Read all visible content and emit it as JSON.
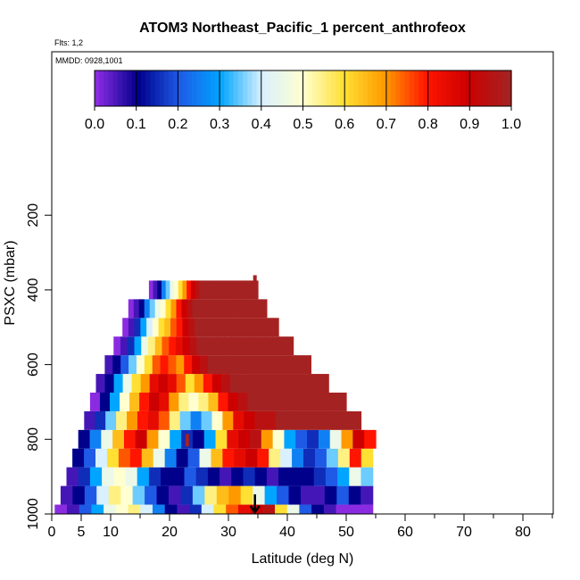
{
  "chart_data": {
    "type": "heatmap",
    "title": "ATOM3 Northeast_Pacific_1 percent_anthrofeox",
    "subtitle_flights": "Flts: 1,2",
    "subtitle_dates": "MMDD: 0928,1001",
    "xlabel": "Latitude (deg N)",
    "ylabel": "PSXC (mbar)",
    "xlim": [
      0,
      85
    ],
    "ylim": [
      1000,
      100
    ],
    "x_ticks": [
      0,
      5,
      10,
      20,
      30,
      40,
      50,
      60,
      70,
      80
    ],
    "y_ticks": [
      200,
      400,
      600,
      800,
      1000
    ],
    "colorbar": {
      "ticks": [
        "0.0",
        "0.1",
        "0.2",
        "0.3",
        "0.4",
        "0.5",
        "0.6",
        "0.7",
        "0.8",
        "0.9",
        "1.0"
      ],
      "colors": [
        "#8a2be2",
        "#00008b",
        "#1e5ae6",
        "#00a5ff",
        "#d8f0ff",
        "#ffffd0",
        "#ffe033",
        "#ff9900",
        "#ff1500",
        "#cc0000",
        "#a52222"
      ],
      "range": [
        0,
        1
      ]
    },
    "pressure_levels": [
      {
        "p": 1000,
        "lat_min": 0.5,
        "lat_max": 54.5,
        "values": [
          0.0,
          0.05,
          0.2,
          0.3,
          0.45,
          0.5,
          0.55,
          0.4,
          0.25,
          0.1,
          0.05,
          0.15,
          0.4,
          0.6,
          0.75,
          0.85,
          0.9,
          0.95,
          0.6,
          0.45,
          0.2,
          0.1,
          0.05,
          0.0,
          0.0,
          0.0
        ]
      },
      {
        "p": 950,
        "lat_min": 1.5,
        "lat_max": 54.5,
        "values": [
          0.05,
          0.1,
          0.2,
          0.4,
          0.55,
          0.5,
          0.35,
          0.2,
          0.1,
          0.05,
          0.15,
          0.35,
          0.55,
          0.65,
          0.7,
          0.6,
          0.45,
          0.3,
          0.2,
          0.1,
          0.05,
          0.05,
          0.1,
          0.2,
          0.1,
          0.05
        ]
      },
      {
        "p": 900,
        "lat_min": 2.5,
        "lat_max": 54.5,
        "values": [
          0.05,
          0.15,
          0.3,
          0.45,
          0.5,
          0.45,
          0.3,
          0.15,
          0.1,
          0.1,
          0.2,
          0.15,
          0.1,
          0.05,
          0.1,
          0.15,
          0.1,
          0.05,
          0.1,
          0.1,
          0.1,
          0.15,
          0.2,
          0.3,
          0.45,
          0.35
        ]
      },
      {
        "p": 850,
        "lat_min": 3.5,
        "lat_max": 54.5,
        "values": [
          0.1,
          0.2,
          0.4,
          0.6,
          0.75,
          0.8,
          0.65,
          0.45,
          0.25,
          0.1,
          0.2,
          0.45,
          0.65,
          0.8,
          0.85,
          0.9,
          0.8,
          0.55,
          0.4,
          0.25,
          0.15,
          0.2,
          0.35,
          0.55,
          0.8,
          0.6
        ]
      },
      {
        "p": 800,
        "lat_min": 4.5,
        "lat_max": 55.0,
        "values": [
          0.1,
          0.25,
          0.45,
          0.65,
          0.8,
          0.9,
          0.7,
          0.5,
          0.3,
          0.15,
          0.1,
          0.3,
          0.6,
          0.85,
          0.9,
          0.95,
          0.7,
          0.5,
          0.3,
          0.2,
          0.15,
          0.25,
          0.45,
          0.7,
          0.9,
          0.8
        ]
      },
      {
        "p": 750,
        "lat_min": 5.5,
        "lat_max": 52.5,
        "values": [
          0.05,
          0.15,
          0.35,
          0.55,
          0.7,
          0.8,
          0.85,
          0.75,
          0.55,
          0.35,
          0.25,
          0.35,
          0.5,
          0.7,
          0.85,
          0.9,
          0.95,
          0.95,
          1.0,
          1.0,
          1.0,
          1.0,
          1.0,
          1.0,
          1.0,
          1.0
        ]
      },
      {
        "p": 700,
        "lat_min": 6.5,
        "lat_max": 50.0,
        "values": [
          0.0,
          0.1,
          0.3,
          0.5,
          0.65,
          0.8,
          0.9,
          0.85,
          0.7,
          0.55,
          0.5,
          0.55,
          0.65,
          0.8,
          0.9,
          0.95,
          1.0,
          1.0,
          1.0,
          1.0,
          1.0,
          1.0,
          1.0,
          1.0,
          1.0,
          1.0
        ]
      },
      {
        "p": 650,
        "lat_min": 7.5,
        "lat_max": 47.0,
        "values": [
          0.05,
          0.1,
          0.3,
          0.45,
          0.6,
          0.7,
          0.85,
          0.9,
          0.85,
          0.75,
          0.6,
          0.7,
          0.8,
          0.9,
          0.95,
          1.0,
          1.0,
          1.0,
          1.0,
          1.0,
          1.0,
          1.0,
          1.0,
          1.0,
          1.0,
          1.0
        ]
      },
      {
        "p": 600,
        "lat_min": 9.0,
        "lat_max": 44.0,
        "values": [
          0.05,
          0.1,
          0.2,
          0.35,
          0.5,
          0.6,
          0.75,
          0.8,
          0.75,
          0.7,
          0.8,
          0.9,
          0.95,
          1.0,
          1.0,
          1.0,
          1.0,
          1.0,
          1.0,
          1.0,
          1.0,
          1.0,
          1.0,
          1.0,
          1.0,
          1.0
        ]
      },
      {
        "p": 550,
        "lat_min": 10.5,
        "lat_max": 41.0,
        "values": [
          0.0,
          0.05,
          0.15,
          0.3,
          0.45,
          0.55,
          0.65,
          0.75,
          0.8,
          0.85,
          0.9,
          0.95,
          1.0,
          1.0,
          1.0,
          1.0,
          1.0,
          1.0,
          1.0,
          1.0,
          1.0,
          1.0,
          1.0,
          1.0,
          1.0,
          1.0
        ]
      },
      {
        "p": 500,
        "lat_min": 12.0,
        "lat_max": 38.5,
        "values": [
          0.0,
          0.05,
          0.15,
          0.3,
          0.4,
          0.5,
          0.6,
          0.65,
          0.75,
          0.8,
          0.9,
          0.95,
          1.0,
          1.0,
          1.0,
          1.0,
          1.0,
          1.0,
          1.0,
          1.0,
          1.0,
          1.0,
          1.0,
          1.0,
          1.0,
          1.0
        ]
      },
      {
        "p": 450,
        "lat_min": 13.0,
        "lat_max": 36.5,
        "values": [
          0.0,
          0.05,
          0.1,
          0.25,
          0.35,
          0.45,
          0.5,
          0.6,
          0.7,
          0.8,
          0.9,
          0.95,
          1.0,
          1.0,
          1.0,
          1.0,
          1.0,
          1.0,
          1.0,
          1.0,
          1.0,
          1.0,
          1.0,
          1.0,
          1.0,
          1.0
        ]
      },
      {
        "p": 400,
        "lat_min": 16.5,
        "lat_max": 35.0,
        "values": [
          0.0,
          0.05,
          0.1,
          0.25,
          0.35,
          0.45,
          0.5,
          0.6,
          0.7,
          0.8,
          0.9,
          0.95,
          1.0,
          1.0,
          1.0,
          1.0,
          1.0,
          1.0,
          1.0,
          1.0,
          1.0,
          1.0,
          1.0,
          1.0,
          1.0,
          1.0
        ]
      }
    ],
    "arrow": {
      "lat": 34.5,
      "p": 1000
    },
    "flight_marks": [
      {
        "lat": 34.5,
        "p": 375
      },
      {
        "lat": 23.0,
        "p": 800
      }
    ]
  }
}
